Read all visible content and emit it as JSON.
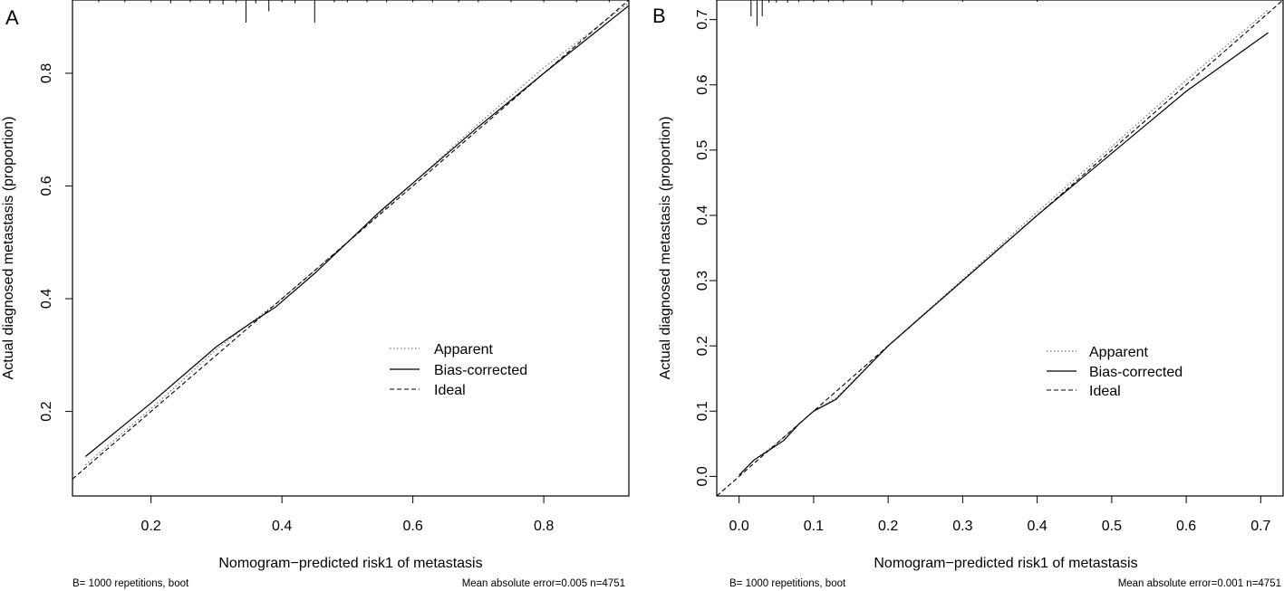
{
  "chart_data": [
    {
      "type": "line",
      "panel_label": "A",
      "xlabel": "Nomogram−predicted risk1 of metastasis",
      "ylabel": "Actual diagnosed metastasis (proportion)",
      "xlim": [
        0.08,
        0.93
      ],
      "ylim": [
        0.05,
        0.93
      ],
      "x_ticks": [
        "0.2",
        "0.4",
        "0.6",
        "0.8"
      ],
      "y_ticks": [
        "0.2",
        "0.4",
        "0.6",
        "0.8"
      ],
      "grid": false,
      "legend_position": "bottom-right",
      "footnote_left": "B= 1000 repetitions, boot",
      "footnote_right": "Mean absolute error=0.005 n=4751",
      "series": [
        {
          "name": "Apparent",
          "style": "dotted",
          "x": [
            0.1,
            0.2,
            0.3,
            0.4,
            0.5,
            0.6,
            0.7,
            0.8,
            0.93
          ],
          "y": [
            0.105,
            0.205,
            0.31,
            0.4,
            0.5,
            0.605,
            0.71,
            0.81,
            0.925
          ]
        },
        {
          "name": "Bias-corrected",
          "style": "solid",
          "x": [
            0.1,
            0.2,
            0.3,
            0.35,
            0.39,
            0.45,
            0.5,
            0.55,
            0.6,
            0.7,
            0.8,
            0.93
          ],
          "y": [
            0.12,
            0.215,
            0.315,
            0.355,
            0.385,
            0.445,
            0.5,
            0.555,
            0.605,
            0.705,
            0.8,
            0.92
          ]
        },
        {
          "name": "Ideal",
          "style": "dashed",
          "x": [
            0.08,
            0.93
          ],
          "y": [
            0.08,
            0.93
          ]
        }
      ],
      "rug": [
        {
          "x": 0.345,
          "h": 0.04
        },
        {
          "x": 0.38,
          "h": 0.02
        },
        {
          "x": 0.45,
          "h": 0.04
        },
        {
          "x": 0.12,
          "h": 0.004
        },
        {
          "x": 0.16,
          "h": 0.004
        },
        {
          "x": 0.2,
          "h": 0.004
        },
        {
          "x": 0.23,
          "h": 0.006
        },
        {
          "x": 0.26,
          "h": 0.004
        },
        {
          "x": 0.29,
          "h": 0.006
        },
        {
          "x": 0.31,
          "h": 0.008
        },
        {
          "x": 0.33,
          "h": 0.004
        },
        {
          "x": 0.36,
          "h": 0.006
        },
        {
          "x": 0.4,
          "h": 0.004
        },
        {
          "x": 0.42,
          "h": 0.006
        },
        {
          "x": 0.48,
          "h": 0.004
        },
        {
          "x": 0.5,
          "h": 0.004
        },
        {
          "x": 0.53,
          "h": 0.004
        },
        {
          "x": 0.56,
          "h": 0.004
        },
        {
          "x": 0.6,
          "h": 0.004
        },
        {
          "x": 0.63,
          "h": 0.004
        },
        {
          "x": 0.67,
          "h": 0.004
        },
        {
          "x": 0.7,
          "h": 0.004
        },
        {
          "x": 0.75,
          "h": 0.004
        },
        {
          "x": 0.8,
          "h": 0.004
        },
        {
          "x": 0.85,
          "h": 0.004
        },
        {
          "x": 0.9,
          "h": 0.004
        }
      ]
    },
    {
      "type": "line",
      "panel_label": "B",
      "xlabel": "Nomogram−predicted risk1 of metastasis",
      "ylabel": "Actual diagnosed metastasis (proportion)",
      "xlim": [
        -0.03,
        0.73
      ],
      "ylim": [
        -0.03,
        0.73
      ],
      "x_ticks": [
        "0.0",
        "0.1",
        "0.2",
        "0.3",
        "0.4",
        "0.5",
        "0.6",
        "0.7"
      ],
      "y_ticks": [
        "0.0",
        "0.1",
        "0.2",
        "0.3",
        "0.4",
        "0.5",
        "0.6",
        "0.7"
      ],
      "grid": false,
      "legend_position": "bottom-right",
      "footnote_left": "B= 1000 repetitions, boot",
      "footnote_right": "Mean absolute error=0.001 n=4751",
      "series": [
        {
          "name": "Apparent",
          "style": "dotted",
          "x": [
            0.0,
            0.02,
            0.05,
            0.08,
            0.1,
            0.13,
            0.2,
            0.3,
            0.4,
            0.5,
            0.6,
            0.71
          ],
          "y": [
            0.002,
            0.025,
            0.05,
            0.08,
            0.1,
            0.12,
            0.2,
            0.302,
            0.405,
            0.505,
            0.607,
            0.715
          ]
        },
        {
          "name": "Bias-corrected",
          "style": "solid",
          "x": [
            0.0,
            0.02,
            0.04,
            0.06,
            0.08,
            0.1,
            0.13,
            0.2,
            0.3,
            0.4,
            0.5,
            0.6,
            0.71
          ],
          "y": [
            0.002,
            0.025,
            0.04,
            0.055,
            0.08,
            0.1,
            0.118,
            0.2,
            0.3,
            0.4,
            0.495,
            0.59,
            0.68
          ]
        },
        {
          "name": "Ideal",
          "style": "dashed",
          "x": [
            -0.03,
            0.73
          ],
          "y": [
            -0.03,
            0.73
          ]
        }
      ],
      "rug": [
        {
          "x": 0.016,
          "h": 0.025
        },
        {
          "x": 0.024,
          "h": 0.04
        },
        {
          "x": 0.031,
          "h": 0.025
        },
        {
          "x": 0.04,
          "h": 0.004
        },
        {
          "x": 0.05,
          "h": 0.004
        },
        {
          "x": 0.065,
          "h": 0.004
        },
        {
          "x": 0.08,
          "h": 0.003
        },
        {
          "x": 0.1,
          "h": 0.003
        },
        {
          "x": 0.12,
          "h": 0.003
        },
        {
          "x": 0.14,
          "h": 0.003
        },
        {
          "x": 0.178,
          "h": 0.008
        },
        {
          "x": 0.22,
          "h": 0.003
        },
        {
          "x": 0.3,
          "h": 0.002
        },
        {
          "x": 0.4,
          "h": 0.002
        }
      ]
    }
  ]
}
